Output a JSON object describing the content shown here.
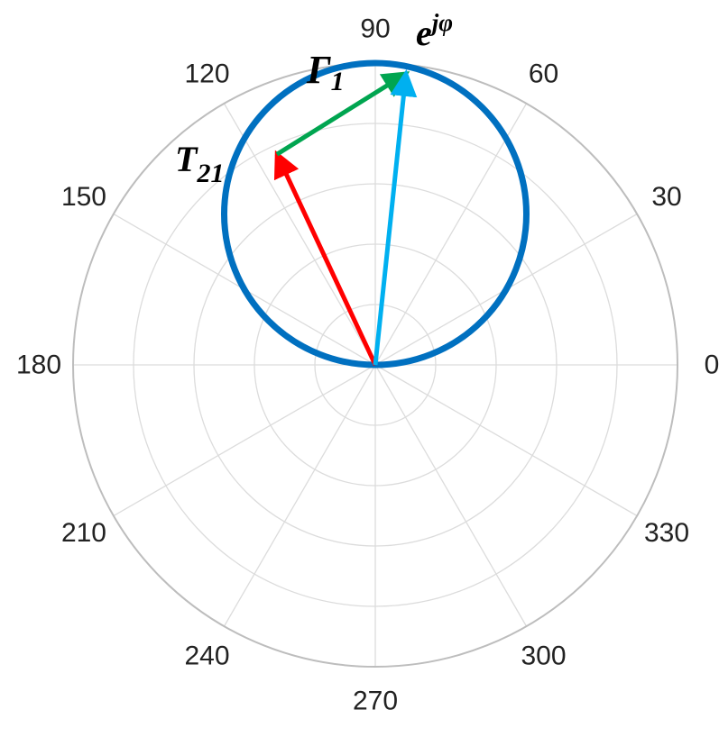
{
  "chart_data": {
    "type": "polar",
    "title": "",
    "grid": true,
    "r_range": [
      0,
      1
    ],
    "r_grid": [
      0.2,
      0.4,
      0.6,
      0.8,
      1.0
    ],
    "theta_ticks": [
      "0",
      "30",
      "60",
      "90",
      "120",
      "150",
      "180",
      "210",
      "240",
      "270",
      "300",
      "330"
    ],
    "theta_tick_values": [
      0,
      30,
      60,
      90,
      120,
      150,
      180,
      210,
      240,
      270,
      300,
      330
    ],
    "circle": {
      "center_r": 0.5,
      "center_theta": 90,
      "radius": 0.5,
      "color": "#0070c0"
    },
    "vectors": [
      {
        "name": "T21",
        "from": {
          "r": 0,
          "theta": 0
        },
        "to": {
          "r": 0.77,
          "theta": 115
        },
        "color": "#ff0000"
      },
      {
        "name": "Γ1",
        "from": {
          "r": 0.77,
          "theta": 115
        },
        "to": {
          "r": 0.97,
          "theta": 84
        },
        "color": "#00a550"
      },
      {
        "name": "e^jφ",
        "from": {
          "r": 0,
          "theta": 0
        },
        "to": {
          "r": 0.97,
          "theta": 84
        },
        "color": "#00b0f0"
      }
    ],
    "annotations": [
      {
        "id": "t21",
        "base": "T",
        "sub": "21",
        "sup": ""
      },
      {
        "id": "gamma1",
        "base": "Γ",
        "sub": "1",
        "sup": ""
      },
      {
        "id": "ejphi",
        "base": "e",
        "sub": "",
        "sup": "jφ"
      }
    ]
  }
}
